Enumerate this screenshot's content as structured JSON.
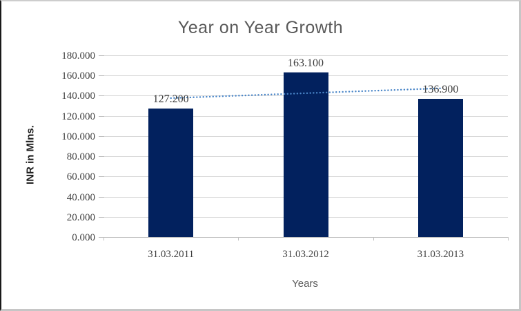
{
  "chart_data": {
    "type": "bar",
    "title": "Year on Year Growth",
    "xlabel": "Years",
    "ylabel": "INR in Mlns.",
    "categories": [
      "31.03.2011",
      "31.03.2012",
      "31.03.2013"
    ],
    "values": [
      127.2,
      163.1,
      136.9
    ],
    "data_labels": [
      "127.200",
      "163.100",
      "136.900"
    ],
    "ylim": [
      0,
      180
    ],
    "ytick_step": 20,
    "ytick_values": [
      0,
      20,
      40,
      60,
      80,
      100,
      120,
      140,
      160,
      180
    ],
    "ytick_labels": [
      "0.000",
      "20.000",
      "40.000",
      "60.000",
      "80.000",
      "100.000",
      "120.000",
      "140.000",
      "160.000",
      "180.000"
    ],
    "grid": true,
    "legend": "none",
    "colors": {
      "bar": "#02215E",
      "trendline": "#4A86C8",
      "gridline": "#D9D9D9",
      "axis_line": "#BFBFBF",
      "tick_mark": "#BFBFBF",
      "title_text": "#595959",
      "label_text": "#404040"
    },
    "trendline": {
      "type": "linear",
      "style": "dotted",
      "start_value": 137.6,
      "end_value": 147.3
    }
  }
}
